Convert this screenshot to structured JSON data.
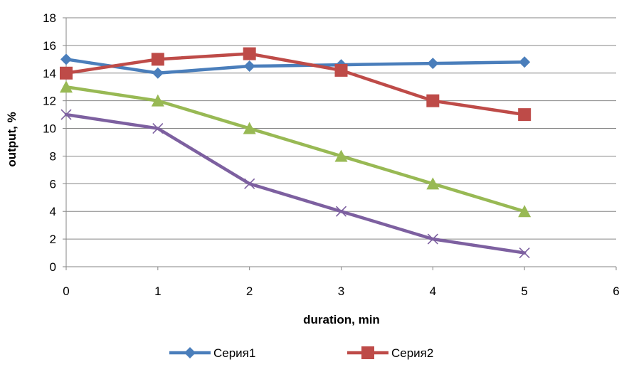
{
  "chart_data": {
    "type": "line",
    "title": "",
    "xlabel": "duration, min",
    "ylabel": "output, %",
    "xlim": [
      0,
      6
    ],
    "ylim": [
      0,
      18
    ],
    "x_ticks": [
      0,
      1,
      2,
      3,
      4,
      5,
      6
    ],
    "y_ticks": [
      0,
      2,
      4,
      6,
      8,
      10,
      12,
      14,
      16,
      18
    ],
    "grid": "horizontal",
    "legend_position": "bottom",
    "series": [
      {
        "name": "Серия1",
        "color": "#4A7EBB",
        "marker": "diamond",
        "x": [
          0,
          1,
          2,
          3,
          4,
          5
        ],
        "y": [
          15,
          14,
          14.5,
          14.6,
          14.7,
          14.8
        ]
      },
      {
        "name": "Серия2",
        "color": "#BE4B48",
        "marker": "square",
        "x": [
          0,
          1,
          2,
          3,
          4,
          5
        ],
        "y": [
          14,
          15,
          15.4,
          14.2,
          12,
          11
        ]
      },
      {
        "color": "#98B954",
        "marker": "triangle",
        "x": [
          0,
          1,
          2,
          3,
          4,
          5
        ],
        "y": [
          13,
          12,
          10,
          8,
          6,
          4
        ]
      },
      {
        "color": "#7D60A0",
        "marker": "x",
        "x": [
          0,
          1,
          2,
          3,
          4,
          5
        ],
        "y": [
          11,
          10,
          6,
          4,
          2,
          1
        ]
      }
    ]
  }
}
